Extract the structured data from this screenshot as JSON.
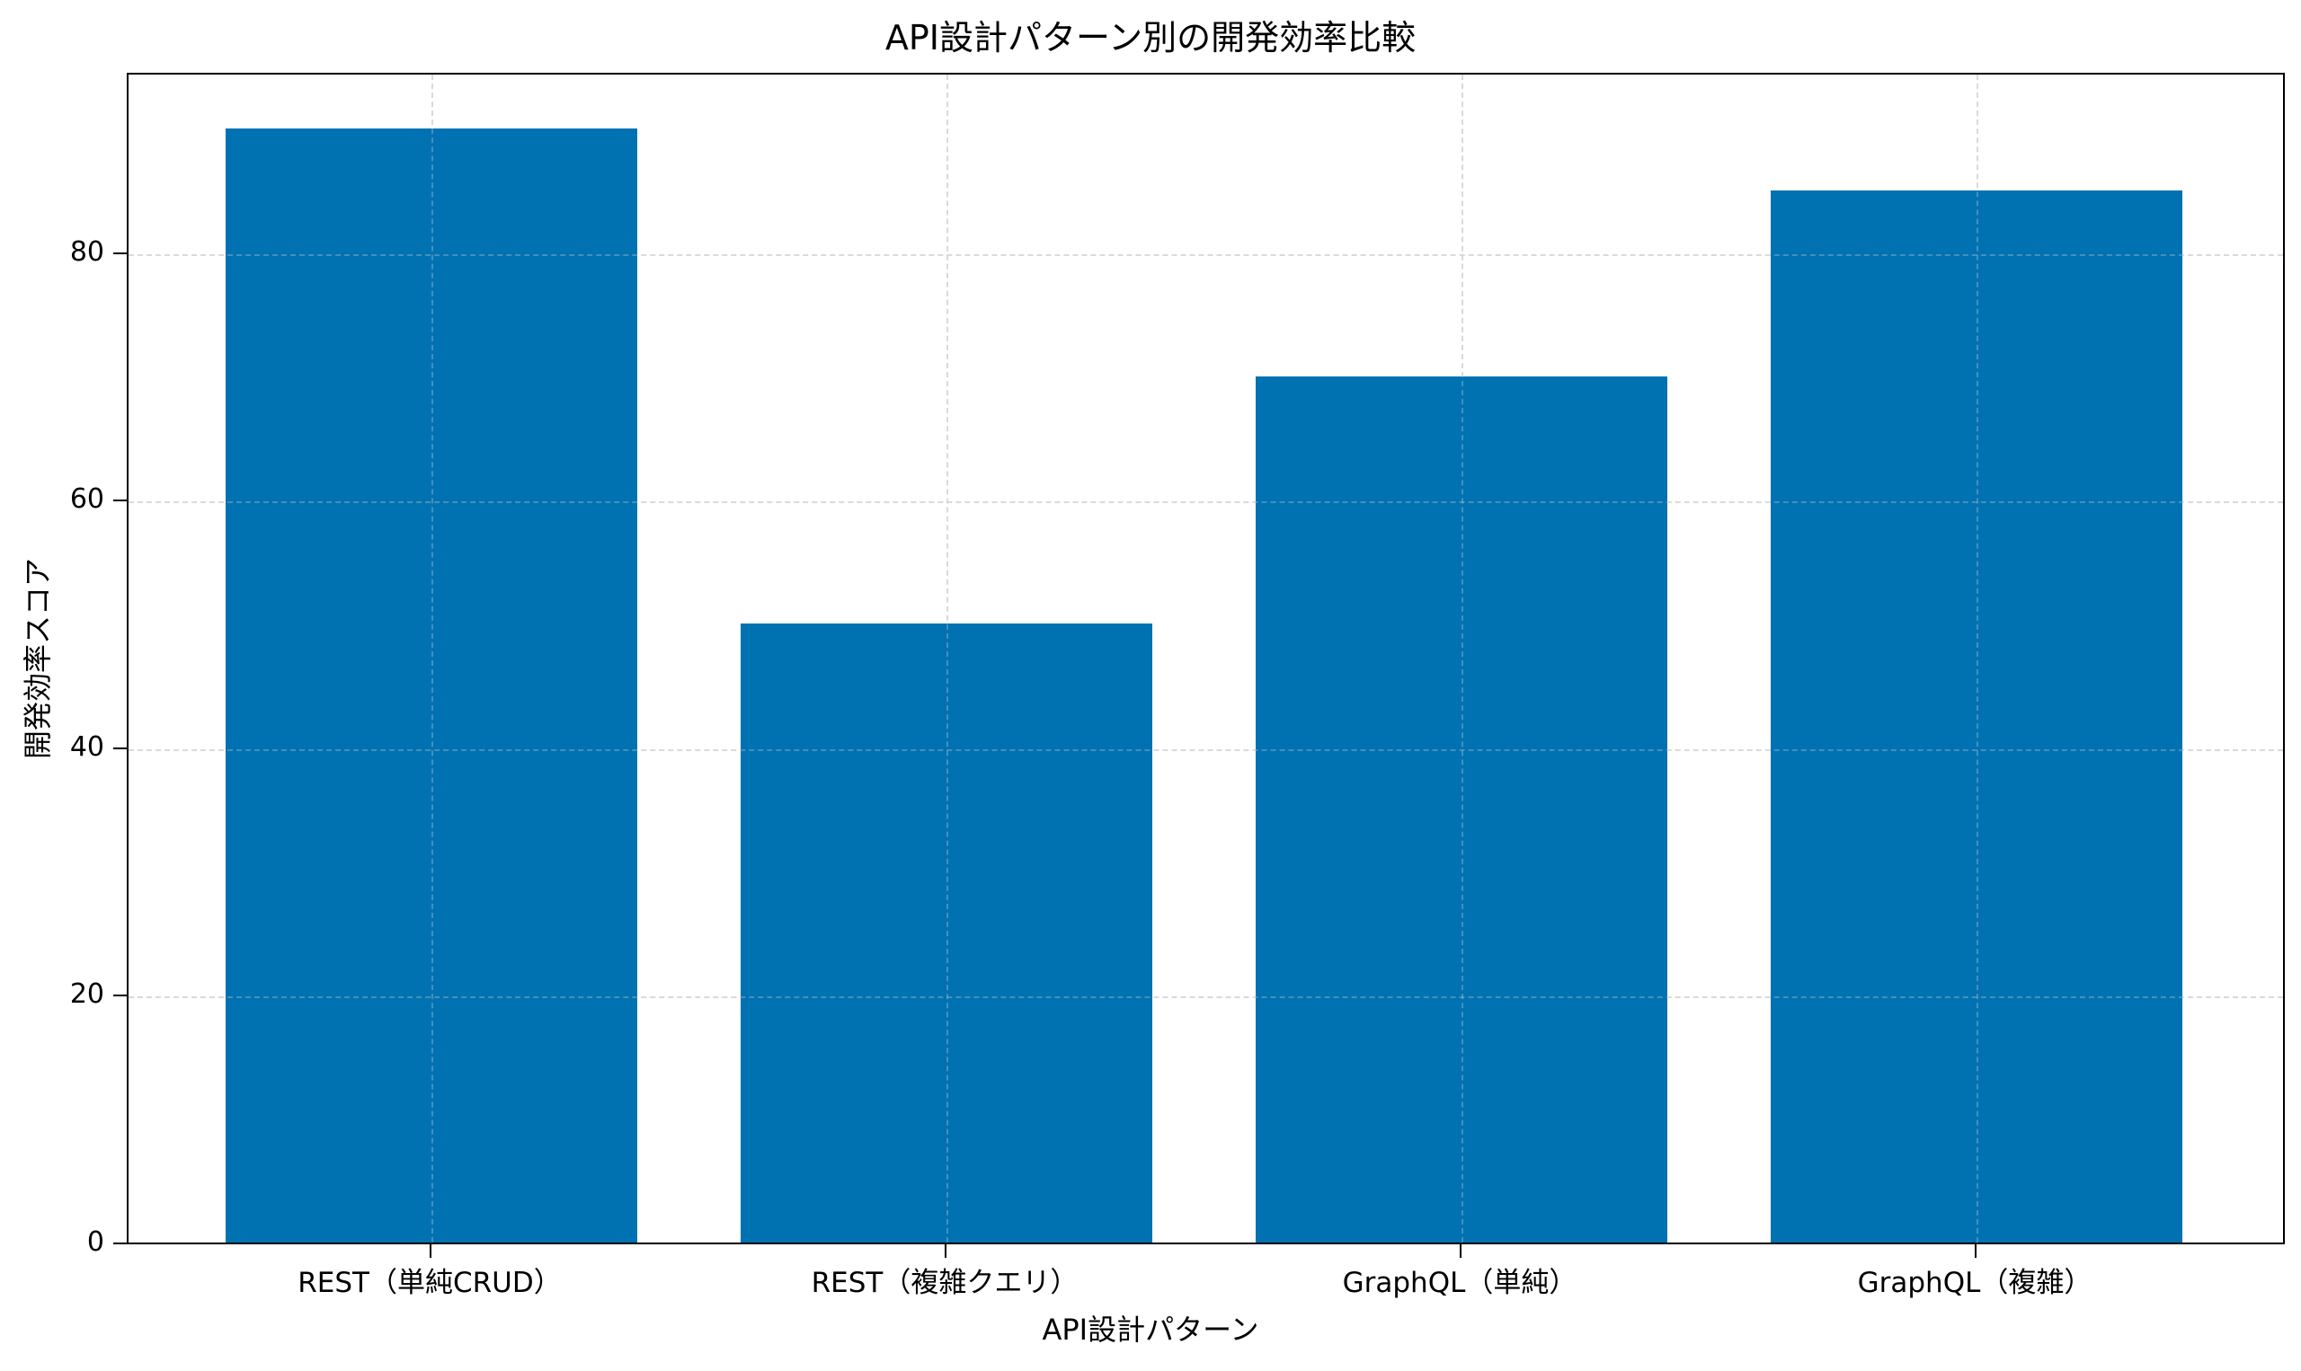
{
  "chart_data": {
    "type": "bar",
    "title": "API設計パターン別の開発効率比較",
    "xlabel": "API設計パターン",
    "ylabel": "開発効率スコア",
    "categories": [
      "REST（単純CRUD）",
      "REST（複雑クエリ）",
      "GraphQL（単純）",
      "GraphQL（複雑）"
    ],
    "values": [
      90,
      50,
      70,
      85
    ],
    "ylim": [
      0,
      94.5
    ],
    "yticks": [
      0,
      20,
      40,
      60,
      80
    ],
    "grid": true,
    "grid_style": "dashed",
    "legend": null,
    "bar_color": "#0072b2"
  }
}
